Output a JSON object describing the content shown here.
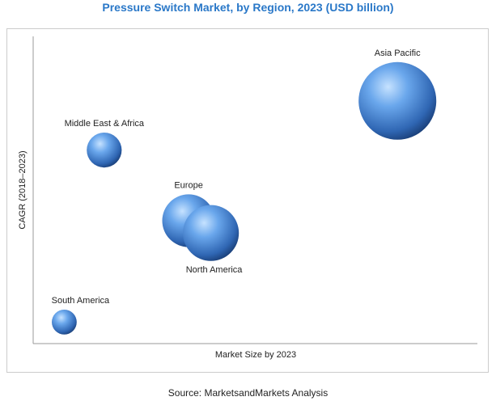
{
  "chart_data": {
    "type": "scatter",
    "title": "Pressure Switch Market, by Region, 2023 (USD billion)",
    "xlabel": "Market Size by 2023",
    "ylabel": "CAGR (2018–2023)",
    "source": "Source: MarketsandMarkets Analysis",
    "grid": false,
    "bubbles": [
      {
        "label": "Asia Pacific",
        "x": 0.82,
        "y": 0.79,
        "size": 1.0
      },
      {
        "label": "Middle East & Africa",
        "x": 0.16,
        "y": 0.63,
        "size": 0.45
      },
      {
        "label": "Europe",
        "x": 0.35,
        "y": 0.4,
        "size": 0.68
      },
      {
        "label": "North America",
        "x": 0.4,
        "y": 0.36,
        "size": 0.72
      },
      {
        "label": "South America",
        "x": 0.07,
        "y": 0.07,
        "size": 0.32
      }
    ]
  },
  "colors": {
    "bubble_light": "#a9d2ff",
    "bubble_mid": "#4f8fd9",
    "bubble_dark": "#1f4f8f",
    "title": "#2a78c8"
  }
}
